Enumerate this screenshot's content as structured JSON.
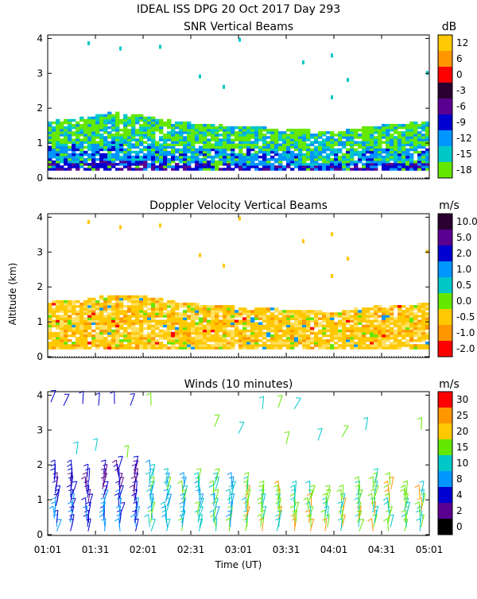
{
  "header": {
    "main_title": "IDEAL ISS DPG  20 Oct 2017 Day 293"
  },
  "axes": {
    "ylabel": "Altitude (km)",
    "xlabel": "Time (UT)",
    "xticks": [
      "01:01",
      "01:31",
      "02:01",
      "02:31",
      "03:01",
      "03:31",
      "04:01",
      "04:31",
      "05:01"
    ],
    "yticks": [
      "0",
      "1",
      "2",
      "3",
      "4"
    ],
    "xrange_min": [
      0,
      240
    ],
    "yrange_km": [
      0,
      4.1
    ]
  },
  "chart_data": [
    {
      "type": "heatmap",
      "title": "SNR Vertical Beams",
      "unit": "dB",
      "colorbar_ticks": [
        "12",
        "6",
        "0",
        "-3",
        "-6",
        "-9",
        "-12",
        "-15",
        "-18"
      ],
      "colorbar_colors": [
        "#ffc800",
        "#ff9600",
        "#ff0000",
        "#2a0030",
        "#5a0090",
        "#0000d0",
        "#0096ff",
        "#00c8c8",
        "#64e800"
      ],
      "ylim": [
        0,
        4.1
      ],
      "layer_top_km": [
        1.6,
        1.7,
        1.85,
        1.75,
        1.6,
        1.5,
        1.45,
        1.4,
        1.35,
        1.3,
        1.45,
        1.6
      ],
      "layer_top_times_min": [
        0,
        20,
        40,
        60,
        80,
        100,
        120,
        140,
        160,
        180,
        200,
        240
      ]
    },
    {
      "type": "heatmap",
      "title": "Doppler Velocity Vertical Beams",
      "unit": "m/s",
      "colorbar_ticks": [
        "10.0",
        "5.0",
        "2.0",
        "1.0",
        "0.5",
        "0.0",
        "-0.5",
        "-1.0",
        "-2.0"
      ],
      "colorbar_colors": [
        "#2a0030",
        "#5a0090",
        "#0000d0",
        "#0096ff",
        "#00c8c8",
        "#64e800",
        "#ffc800",
        "#ff9600",
        "#ff0000"
      ],
      "ylim": [
        0,
        4.1
      ],
      "layer_top_km": [
        1.55,
        1.6,
        1.75,
        1.7,
        1.55,
        1.45,
        1.4,
        1.35,
        1.3,
        1.25,
        1.4,
        1.5
      ],
      "layer_top_times_min": [
        0,
        20,
        40,
        60,
        80,
        100,
        120,
        140,
        160,
        180,
        200,
        240
      ]
    },
    {
      "type": "scatter",
      "title": "Winds (10 minutes)",
      "unit": "m/s",
      "colorbar_ticks": [
        "30",
        "25",
        "20",
        "15",
        "10",
        "8",
        "4",
        "2",
        "0"
      ],
      "colorbar_colors": [
        "#ff0000",
        "#ff9600",
        "#ffc800",
        "#64e800",
        "#00c8c8",
        "#0096ff",
        "#0000d0",
        "#5a0090",
        "#000000"
      ],
      "ylim": [
        0,
        4.1
      ],
      "profile_times_min": [
        5,
        15,
        25,
        35,
        45,
        55,
        65,
        75,
        85,
        95,
        105,
        115,
        125,
        135,
        145,
        155,
        165,
        175,
        185,
        195,
        205,
        215,
        225,
        235
      ],
      "profile_tops_km": [
        1.9,
        1.8,
        1.75,
        1.9,
        2.0,
        2.0,
        1.85,
        1.65,
        1.5,
        1.55,
        1.6,
        1.5,
        1.45,
        1.3,
        1.3,
        1.2,
        1.25,
        1.1,
        1.1,
        1.4,
        1.6,
        1.5,
        1.3,
        1.2
      ],
      "upper_level_winds_km": [
        3.6,
        3.8,
        3.0,
        2.4,
        2.3,
        3.5
      ]
    }
  ]
}
